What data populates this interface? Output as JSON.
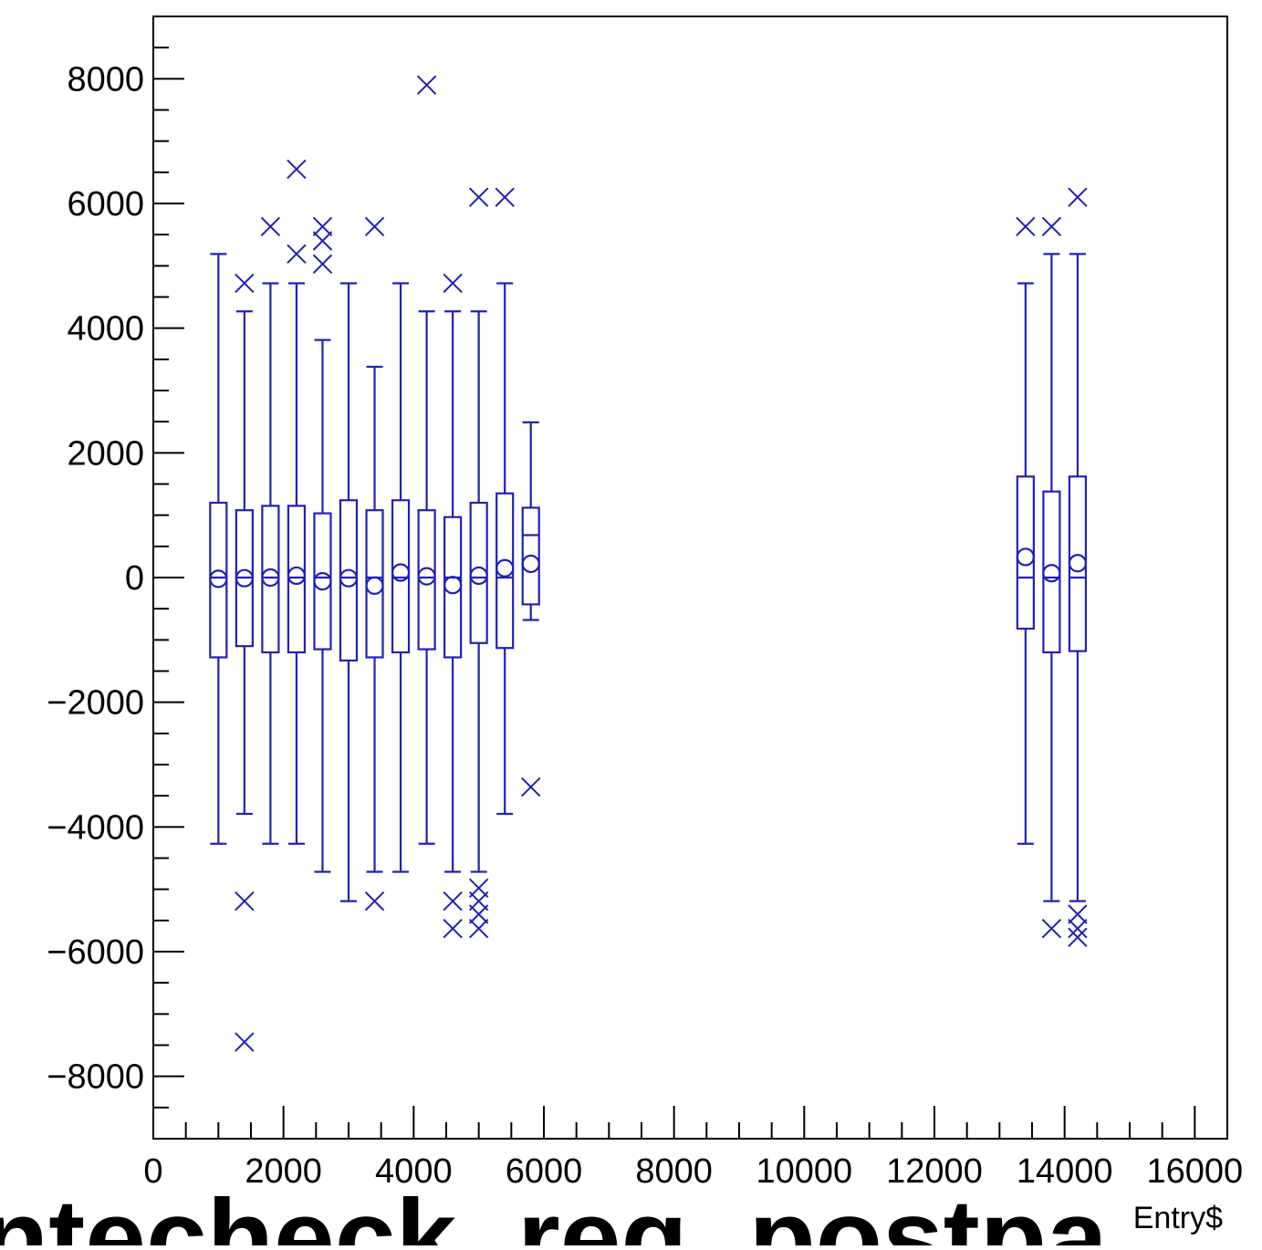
{
  "chart_data": {
    "type": "box",
    "title": "",
    "xlabel": "Entry$",
    "ylabel": "",
    "xlim": [
      0,
      16500
    ],
    "ylim": [
      -9000,
      9000
    ],
    "x_ticks": [
      0,
      2000,
      4000,
      6000,
      8000,
      10000,
      12000,
      14000,
      16000
    ],
    "y_ticks": [
      -8000,
      -6000,
      -4000,
      -2000,
      0,
      2000,
      4000,
      6000,
      8000
    ],
    "color": "#2020b8",
    "grid": false,
    "bottom_banner_text": "ntecheck_reg_postpa",
    "boxes": [
      {
        "x": 1000,
        "whisker_low": -4270,
        "q1": -1280,
        "median": 0,
        "q3": 1200,
        "whisker_high": 5190,
        "mean": -20,
        "outliers": []
      },
      {
        "x": 1400,
        "whisker_low": -3790,
        "q1": -1100,
        "median": 0,
        "q3": 1080,
        "whisker_high": 4270,
        "mean": -10,
        "outliers": [
          4720,
          -5190,
          -7450
        ]
      },
      {
        "x": 1800,
        "whisker_low": -4270,
        "q1": -1200,
        "median": 0,
        "q3": 1150,
        "whisker_high": 4720,
        "mean": 0,
        "outliers": [
          5630
        ]
      },
      {
        "x": 2200,
        "whisker_low": -4270,
        "q1": -1200,
        "median": 0,
        "q3": 1150,
        "whisker_high": 4720,
        "mean": 30,
        "outliers": [
          6550,
          5190
        ]
      },
      {
        "x": 2600,
        "whisker_low": -4720,
        "q1": -1150,
        "median": 0,
        "q3": 1030,
        "whisker_high": 3810,
        "mean": -60,
        "outliers": [
          5630,
          5400,
          5030
        ]
      },
      {
        "x": 3000,
        "whisker_low": -5190,
        "q1": -1330,
        "median": 0,
        "q3": 1240,
        "whisker_high": 4720,
        "mean": -10,
        "outliers": []
      },
      {
        "x": 3400,
        "whisker_low": -4720,
        "q1": -1280,
        "median": 0,
        "q3": 1080,
        "whisker_high": 3380,
        "mean": -130,
        "outliers": [
          5630,
          -5190
        ]
      },
      {
        "x": 3800,
        "whisker_low": -4720,
        "q1": -1200,
        "median": 0,
        "q3": 1240,
        "whisker_high": 4720,
        "mean": 80,
        "outliers": []
      },
      {
        "x": 4200,
        "whisker_low": -4270,
        "q1": -1150,
        "median": 0,
        "q3": 1080,
        "whisker_high": 4270,
        "mean": 20,
        "outliers": [
          7900
        ]
      },
      {
        "x": 4600,
        "whisker_low": -4720,
        "q1": -1280,
        "median": 0,
        "q3": 970,
        "whisker_high": 4270,
        "mean": -120,
        "outliers": [
          4720,
          -5190,
          -5630
        ]
      },
      {
        "x": 5000,
        "whisker_low": -4720,
        "q1": -1050,
        "median": 0,
        "q3": 1200,
        "whisker_high": 4270,
        "mean": 30,
        "outliers": [
          6100,
          -4980,
          -5190,
          -5400,
          -5630
        ]
      },
      {
        "x": 5400,
        "whisker_low": -3790,
        "q1": -1130,
        "median": 0,
        "q3": 1350,
        "whisker_high": 4720,
        "mean": 150,
        "outliers": [
          6100
        ]
      },
      {
        "x": 5800,
        "whisker_low": -680,
        "q1": -430,
        "median": 680,
        "q3": 1120,
        "whisker_high": 2490,
        "mean": 220,
        "outliers": [
          -3360
        ]
      },
      {
        "x": 13400,
        "whisker_low": -4270,
        "q1": -820,
        "median": 0,
        "q3": 1620,
        "whisker_high": 4720,
        "mean": 330,
        "outliers": [
          5630
        ]
      },
      {
        "x": 13800,
        "whisker_low": -5190,
        "q1": -1200,
        "median": 0,
        "q3": 1380,
        "whisker_high": 5190,
        "mean": 70,
        "outliers": [
          5630,
          -5630
        ]
      },
      {
        "x": 14200,
        "whisker_low": -5190,
        "q1": -1180,
        "median": 0,
        "q3": 1620,
        "whisker_high": 5190,
        "mean": 230,
        "outliers": [
          6100,
          -5400,
          -5630,
          -5770
        ]
      }
    ]
  }
}
